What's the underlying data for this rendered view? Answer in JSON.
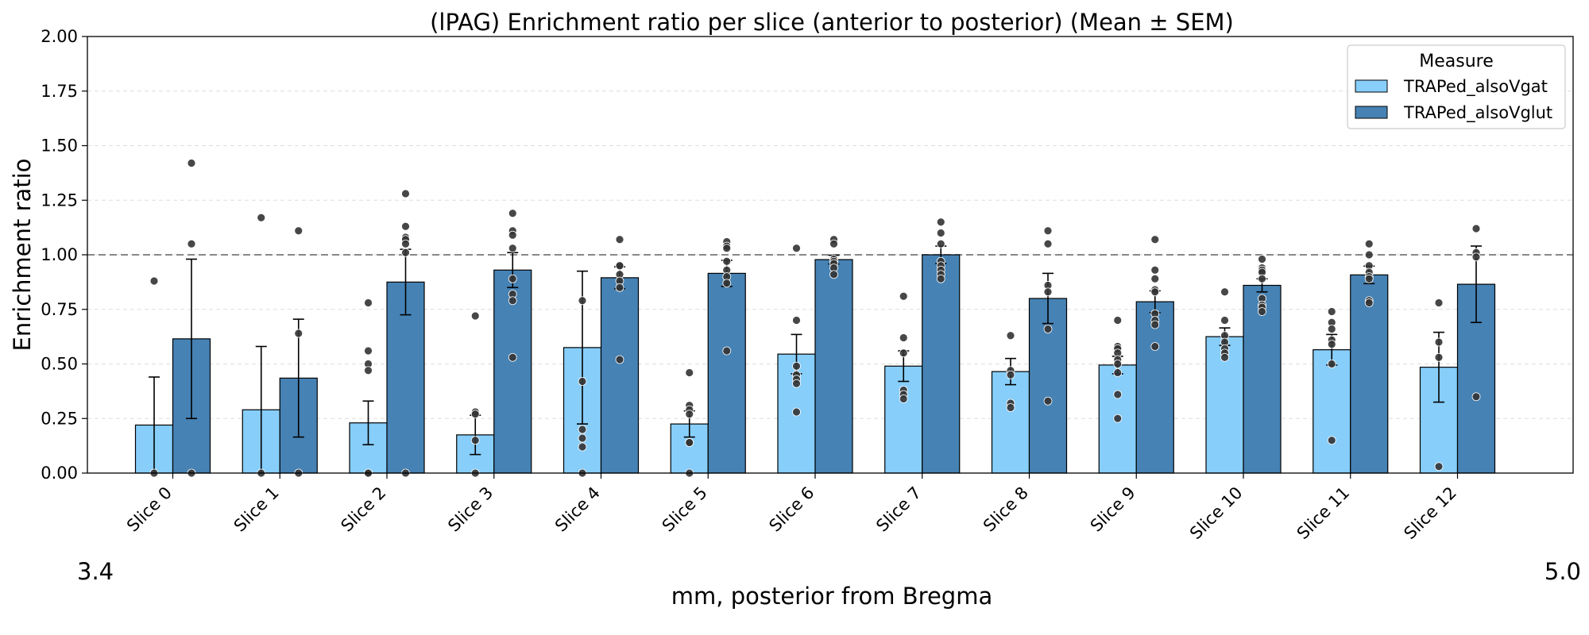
{
  "chart_data": {
    "type": "bar",
    "title": "(lPAG) Enrichment ratio per slice (anterior to posterior) (Mean ± SEM)",
    "xlabel": "mm, posterior from Bregma",
    "ylabel": "Enrichment ratio",
    "x_start_label": "3.4",
    "x_end_label": "5.0",
    "ylim": [
      0,
      2.0
    ],
    "yticks": [
      "0.00",
      "0.25",
      "0.50",
      "0.75",
      "1.00",
      "1.25",
      "1.50",
      "1.75",
      "2.00"
    ],
    "ytick_values": [
      0,
      0.25,
      0.5,
      0.75,
      1.0,
      1.25,
      1.5,
      1.75,
      2.0
    ],
    "reference_line": 1.0,
    "grid": "horizontal dashed",
    "legend": {
      "title": "Measure",
      "placement": "top-right"
    },
    "categories": [
      "Slice 0",
      "Slice 1",
      "Slice 2",
      "Slice 3",
      "Slice 4",
      "Slice 5",
      "Slice 6",
      "Slice 7",
      "Slice 8",
      "Slice 9",
      "Slice 10",
      "Slice 11",
      "Slice 12"
    ],
    "series": [
      {
        "name": "TRAPed_alsoVgat",
        "color": "#87cefa",
        "values": [
          0.22,
          0.29,
          0.23,
          0.175,
          0.575,
          0.225,
          0.545,
          0.49,
          0.465,
          0.495,
          0.625,
          0.565,
          0.485
        ],
        "sem": [
          0.22,
          0.29,
          0.1,
          0.09,
          0.35,
          0.06,
          0.09,
          0.07,
          0.06,
          0.04,
          0.04,
          0.07,
          0.16
        ],
        "points": [
          [
            0.88,
            0.0
          ],
          [
            1.17,
            0.0
          ],
          [
            0.78,
            0.56,
            0.5,
            0.47,
            0.0,
            0.0
          ],
          [
            0.72,
            0.28,
            0.27,
            0.15,
            0.0
          ],
          [
            0.79,
            0.42,
            0.2,
            0.16,
            0.12,
            0.0
          ],
          [
            0.46,
            0.31,
            0.29,
            0.27,
            0.14,
            0.14,
            0.0
          ],
          [
            1.03,
            0.7,
            0.49,
            0.45,
            0.43,
            0.41,
            0.28
          ],
          [
            0.81,
            0.62,
            0.55,
            0.38,
            0.36,
            0.34
          ],
          [
            0.63,
            0.47,
            0.45,
            0.32,
            0.3
          ],
          [
            0.7,
            0.58,
            0.57,
            0.55,
            0.52,
            0.5,
            0.46,
            0.36,
            0.25
          ],
          [
            0.83,
            0.7,
            0.63,
            0.6,
            0.57,
            0.55,
            0.53
          ],
          [
            0.74,
            0.69,
            0.66,
            0.61,
            0.59,
            0.5,
            0.15
          ],
          [
            0.78,
            0.6,
            0.53,
            0.03
          ]
        ]
      },
      {
        "name": "TRAPed_alsoVglut",
        "color": "#4682b4",
        "values": [
          0.615,
          0.435,
          0.875,
          0.93,
          0.895,
          0.915,
          0.978,
          1.0,
          0.8,
          0.785,
          0.86,
          0.908,
          0.865
        ],
        "sem": [
          0.365,
          0.27,
          0.15,
          0.08,
          0.05,
          0.06,
          0.02,
          0.04,
          0.115,
          0.05,
          0.03,
          0.04,
          0.175
        ],
        "points": [
          [
            1.42,
            1.05,
            0.0
          ],
          [
            1.11,
            0.64,
            0.0
          ],
          [
            1.28,
            1.13,
            1.08,
            1.07,
            1.05,
            1.01,
            0.0
          ],
          [
            1.19,
            1.11,
            1.09,
            1.03,
            0.89,
            0.82,
            0.79,
            0.53
          ],
          [
            1.07,
            0.95,
            0.95,
            0.91,
            0.88,
            0.85,
            0.52
          ],
          [
            1.06,
            1.04,
            1.03,
            0.97,
            0.93,
            0.9,
            0.87,
            0.56
          ],
          [
            1.07,
            1.05,
            0.98,
            0.97,
            0.96,
            0.94,
            0.91
          ],
          [
            1.15,
            1.1,
            1.05,
            0.97,
            0.95,
            0.93,
            0.91,
            0.89
          ],
          [
            1.11,
            1.05,
            0.86,
            0.83,
            0.66,
            0.33
          ],
          [
            1.07,
            0.93,
            0.89,
            0.84,
            0.83,
            0.73,
            0.7,
            0.68,
            0.58
          ],
          [
            0.98,
            0.94,
            0.93,
            0.92,
            0.89,
            0.8,
            0.77,
            0.76,
            0.74
          ],
          [
            1.05,
            1.0,
            0.95,
            0.92,
            0.9,
            0.89,
            0.79,
            0.78
          ],
          [
            1.12,
            1.01,
            0.99,
            0.35
          ]
        ]
      }
    ]
  }
}
